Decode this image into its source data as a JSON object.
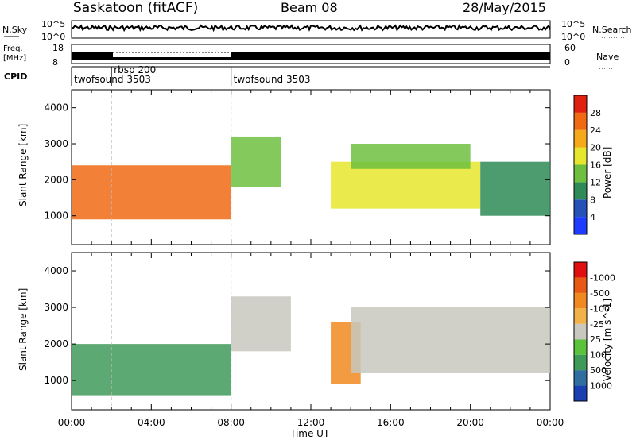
{
  "header": {
    "station": "Saskatoon (fitACF)",
    "beam": "Beam 08",
    "date": "28/May/2015"
  },
  "noise_panel": {
    "left_label": "N.Sky",
    "right_label": "N.Search",
    "tick_top": "10^5",
    "tick_bottom": "10^0"
  },
  "freq_panel": {
    "left_label_1": "Freq.",
    "left_label_2": "[MHz]",
    "right_label": "Nave",
    "left_ticks": [
      "18",
      "8"
    ],
    "right_ticks": [
      "60",
      "0"
    ]
  },
  "cpid_panel": {
    "label": "CPID",
    "segments": [
      {
        "name": "twofsound 3503",
        "start_hour": 0
      },
      {
        "name": "rbsp 200",
        "start_hour": 2
      },
      {
        "name": "twofsound 3503",
        "start_hour": 8
      }
    ]
  },
  "x_axis": {
    "title": "Time UT",
    "ticks": [
      "00:00",
      "04:00",
      "08:00",
      "12:00",
      "16:00",
      "20:00",
      "00:00"
    ]
  },
  "chart_data": [
    {
      "type": "heatmap",
      "ylabel": "Slant Range [km]",
      "y_ticks": [
        "1000",
        "2000",
        "3000",
        "4000"
      ],
      "ylim": [
        200,
        4500
      ],
      "x_ticks": [
        "00:00",
        "04:00",
        "08:00",
        "12:00",
        "16:00",
        "20:00",
        "00:00"
      ],
      "colorbar_label": "Power [dB]",
      "colorbar_ticks": [
        "4",
        "8",
        "12",
        "16",
        "20",
        "24",
        "28"
      ],
      "colorbar_colors": [
        "#1e3cff",
        "#2452b8",
        "#2e8b57",
        "#6fbf3f",
        "#e6e62e",
        "#f6a91b",
        "#f06a14",
        "#e02010"
      ],
      "regions": [
        {
          "t_start": 0.0,
          "t_end": 8.0,
          "r_min": 900,
          "r_max": 2400,
          "level": 24
        },
        {
          "t_start": 8.0,
          "t_end": 10.5,
          "r_min": 1800,
          "r_max": 3200,
          "level": 10
        },
        {
          "t_start": 13.0,
          "t_end": 20.5,
          "r_min": 1200,
          "r_max": 2500,
          "level": 14
        },
        {
          "t_start": 14.0,
          "t_end": 20.0,
          "r_min": 2300,
          "r_max": 3000,
          "level": 12
        },
        {
          "t_start": 20.5,
          "t_end": 24.0,
          "r_min": 1000,
          "r_max": 2500,
          "level": 8
        }
      ]
    },
    {
      "type": "heatmap",
      "ylabel": "Slant Range [km]",
      "y_ticks": [
        "1000",
        "2000",
        "3000",
        "4000"
      ],
      "ylim": [
        200,
        4500
      ],
      "x_ticks": [
        "00:00",
        "04:00",
        "08:00",
        "12:00",
        "16:00",
        "20:00",
        "00:00"
      ],
      "colorbar_label": "Velocity [m s^-1]",
      "colorbar_ticks": [
        "1000",
        "500",
        "100",
        "25",
        "-25",
        "-100",
        "-500",
        "-1000"
      ],
      "colorbar_colors": [
        "#1a3fb0",
        "#2f6e9e",
        "#3f9a5a",
        "#5cc23c",
        "#c8c8c0",
        "#f2b24a",
        "#f08a20",
        "#e85a14",
        "#e01010"
      ],
      "regions": [
        {
          "t_start": 0.0,
          "t_end": 8.0,
          "r_min": 600,
          "r_max": 2000,
          "velocity": 100
        },
        {
          "t_start": 8.0,
          "t_end": 11.0,
          "r_min": 1800,
          "r_max": 3300,
          "velocity": 0
        },
        {
          "t_start": 13.0,
          "t_end": 14.5,
          "r_min": 900,
          "r_max": 2600,
          "velocity": -300
        },
        {
          "t_start": 14.0,
          "t_end": 24.0,
          "r_min": 1200,
          "r_max": 3000,
          "velocity": 0
        }
      ]
    }
  ]
}
